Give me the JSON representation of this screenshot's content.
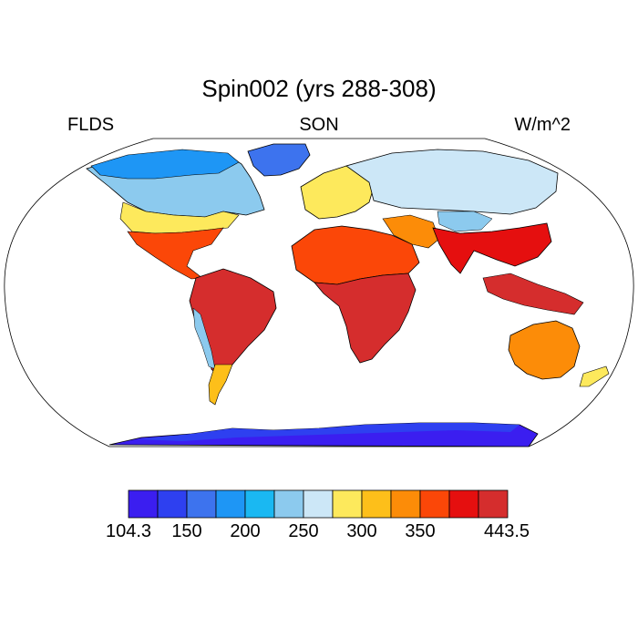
{
  "title": "Spin002 (yrs 288-308)",
  "variable": "FLDS",
  "season": "SON",
  "units": "W/m^2",
  "map": {
    "projection": "robinson",
    "field": "downwelling longwave flux at surface",
    "regions": [
      {
        "name": "arctic-canada",
        "value": 175
      },
      {
        "name": "greenland",
        "value": 150
      },
      {
        "name": "northern-north-america",
        "value": 230
      },
      {
        "name": "central-north-america",
        "value": 300
      },
      {
        "name": "southern-us-mexico",
        "value": 390
      },
      {
        "name": "amazon",
        "value": 430
      },
      {
        "name": "andes",
        "value": 260
      },
      {
        "name": "patagonia",
        "value": 280
      },
      {
        "name": "europe",
        "value": 310
      },
      {
        "name": "siberia",
        "value": 235
      },
      {
        "name": "tibet",
        "value": 250
      },
      {
        "name": "sahara",
        "value": 400
      },
      {
        "name": "central-africa",
        "value": 425
      },
      {
        "name": "india-se-asia",
        "value": 425
      },
      {
        "name": "australia",
        "value": 370
      },
      {
        "name": "new-zealand",
        "value": 310
      },
      {
        "name": "antarctica",
        "value": 120
      }
    ]
  },
  "colorbar": {
    "min_label": "104.3",
    "max_label": "443.5",
    "tick_labels": [
      "150",
      "200",
      "250",
      "300",
      "350"
    ],
    "colors": [
      "#3b1ef0",
      "#2e40f0",
      "#3d73ee",
      "#1e96f5",
      "#1ab8f2",
      "#8ccaee",
      "#cce7f7",
      "#fde95c",
      "#fdbf1a",
      "#fc8c08",
      "#fb4708",
      "#e50f0f",
      "#d52d2d"
    ]
  }
}
